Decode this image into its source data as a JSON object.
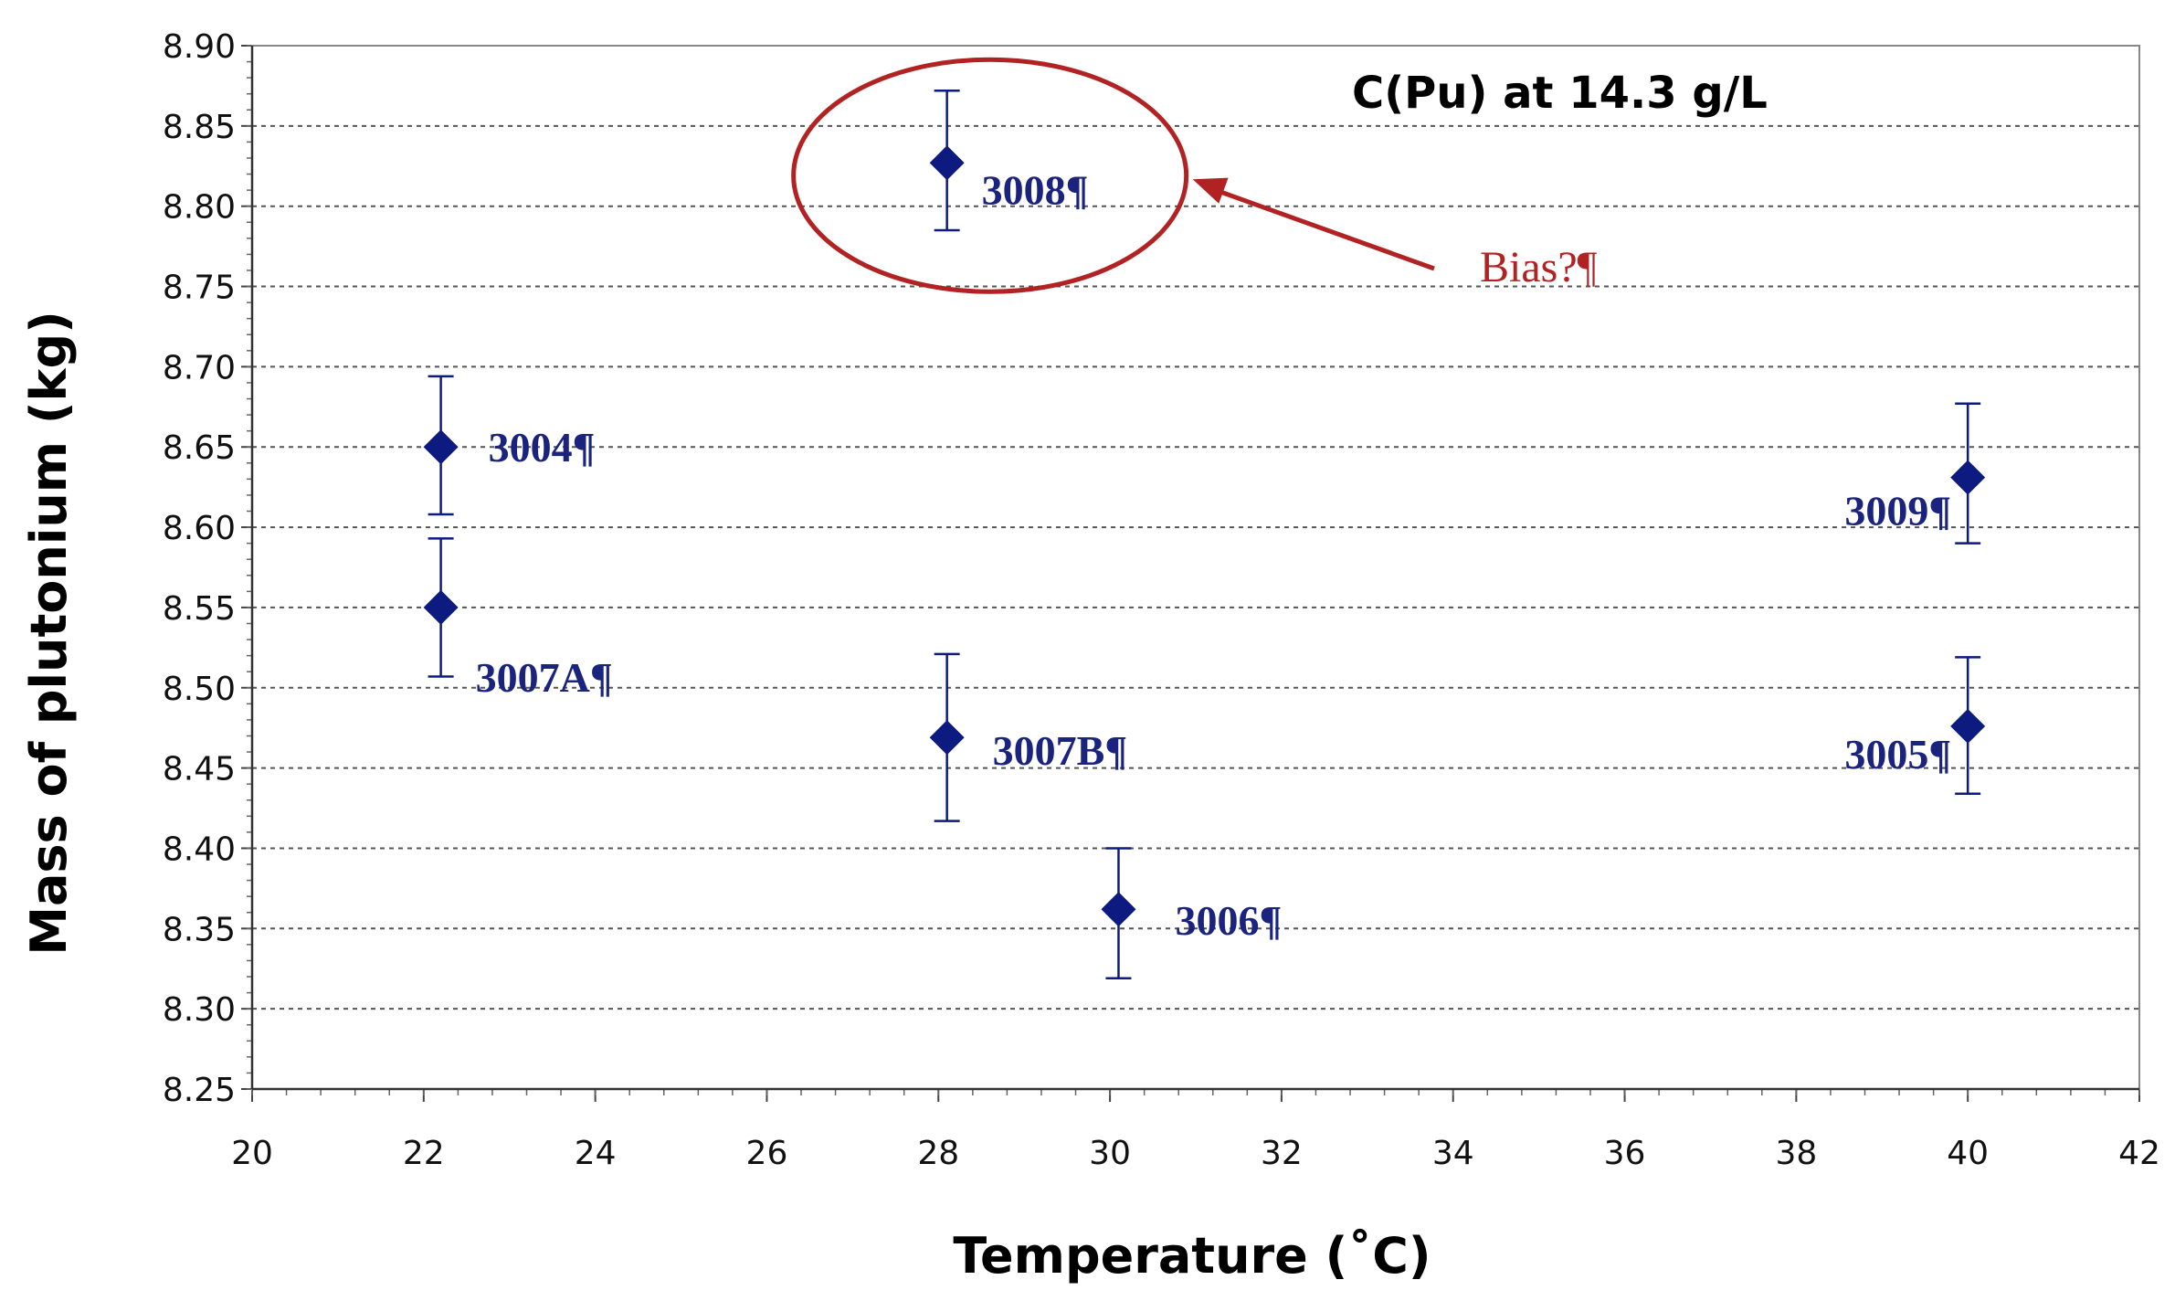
{
  "chart_data": {
    "type": "scatter",
    "title": "C(Pu) at 14.3 g/L",
    "xlabel": "Temperature (˚C)",
    "ylabel": "Mass of plutonium (kg)",
    "xlim": [
      20,
      42
    ],
    "ylim": [
      8.25,
      8.9
    ],
    "x_ticks": [
      "20",
      "22",
      "24",
      "26",
      "28",
      "30",
      "32",
      "34",
      "36",
      "38",
      "40",
      "42"
    ],
    "y_ticks": [
      "8.25",
      "8.30",
      "8.35",
      "8.40",
      "8.45",
      "8.50",
      "8.55",
      "8.60",
      "8.65",
      "8.70",
      "8.75",
      "8.80",
      "8.85",
      "8.90"
    ],
    "grid": "horizontal dashed",
    "marker": "diamond",
    "colors": {
      "points": "#0d1a80",
      "labels": "#1a237e",
      "annotation": "#b22222"
    },
    "points": [
      {
        "label": "3004¶",
        "x": 22.2,
        "y": 8.65,
        "err_low": 8.608,
        "err_high": 8.694
      },
      {
        "label": "3007A¶",
        "x": 22.2,
        "y": 8.55,
        "err_low": 8.507,
        "err_high": 8.593
      },
      {
        "label": "3008¶",
        "x": 28.1,
        "y": 8.827,
        "err_low": 8.785,
        "err_high": 8.872
      },
      {
        "label": "3007B¶",
        "x": 28.1,
        "y": 8.469,
        "err_low": 8.417,
        "err_high": 8.521
      },
      {
        "label": "3006¶",
        "x": 30.1,
        "y": 8.362,
        "err_low": 8.319,
        "err_high": 8.4
      },
      {
        "label": "3009¶",
        "x": 40.0,
        "y": 8.631,
        "err_low": 8.59,
        "err_high": 8.677
      },
      {
        "label": "3005¶",
        "x": 40.0,
        "y": 8.476,
        "err_low": 8.434,
        "err_high": 8.519
      }
    ],
    "annotations": [
      {
        "text": "Bias?¶",
        "target_label": "3008¶",
        "shape": "ellipse with arrow"
      }
    ]
  }
}
